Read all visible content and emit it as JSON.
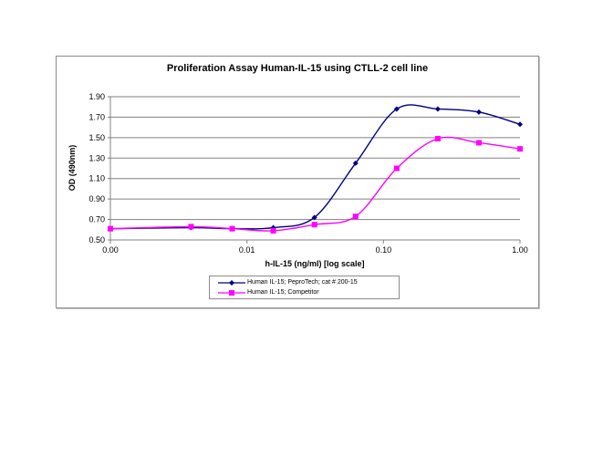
{
  "chart_data": {
    "type": "line",
    "title": "Proliferation Assay Human-IL-15 using CTLL-2 cell line",
    "xlabel": "h-IL-15 (ng/ml) [log scale]",
    "ylabel": "OD (490nm)",
    "x_scale": "log",
    "x_tick_labels": [
      "0.00",
      "0.01",
      "0.10",
      "1.00"
    ],
    "y_tick_labels": [
      "0.50",
      "0.70",
      "0.90",
      "1.10",
      "1.30",
      "1.50",
      "1.70",
      "1.90"
    ],
    "ylim": [
      0.5,
      1.9
    ],
    "xlim": [
      0.001,
      1.0
    ],
    "grid": "horizontal",
    "legend_position": "bottom",
    "x": [
      0.001,
      0.0039,
      0.0078,
      0.0156,
      0.03125,
      0.0625,
      0.125,
      0.25,
      0.5,
      1.0
    ],
    "series": [
      {
        "name": "Human IL-15; PeproTech; cat # 200-15",
        "color": "#000080",
        "marker": "diamond",
        "values": [
          0.61,
          0.62,
          0.61,
          0.62,
          0.72,
          1.25,
          1.78,
          1.78,
          1.75,
          1.63
        ]
      },
      {
        "name": "Human IL-15; Competitor",
        "color": "#ff00ff",
        "marker": "square",
        "values": [
          0.61,
          0.63,
          0.61,
          0.59,
          0.65,
          0.73,
          1.2,
          1.49,
          1.45,
          1.39
        ]
      }
    ]
  },
  "legend": {
    "items": [
      {
        "label": "Human IL-15; PeproTech; cat # 200-15",
        "color": "#000080"
      },
      {
        "label": "Human IL-15; Competitor",
        "color": "#ff00ff"
      }
    ]
  }
}
